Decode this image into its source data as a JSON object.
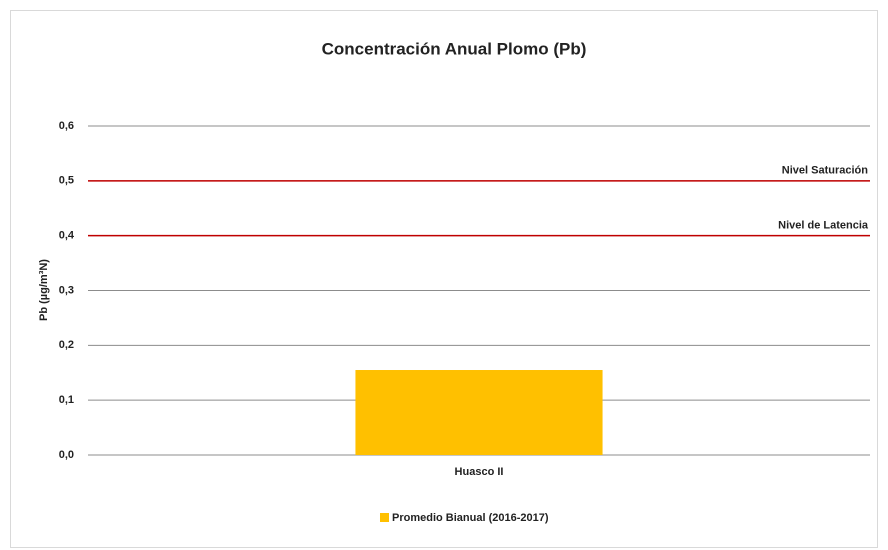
{
  "chart_data": {
    "type": "bar",
    "title": "Concentración Anual Plomo (Pb)",
    "y_label": "Pb (µg/m³N)",
    "categories": [
      "Huasco II"
    ],
    "series": [
      {
        "name": "Promedio Bianual (2016-2017)",
        "color": "#ffc000",
        "values": [
          0.155
        ]
      }
    ],
    "ylim": [
      0,
      0.6
    ],
    "yticks": [
      {
        "value": 0,
        "label": "0,0"
      },
      {
        "value": 0.1,
        "label": "0,1"
      },
      {
        "value": 0.2,
        "label": "0,2"
      },
      {
        "value": 0.3,
        "label": "0,3"
      },
      {
        "value": 0.4,
        "label": "0,4"
      },
      {
        "value": 0.5,
        "label": "0,5"
      },
      {
        "value": 0.6,
        "label": "0,6"
      }
    ],
    "grid": true,
    "reference_lines": [
      {
        "value": 0.5,
        "label": "Nivel Saturación",
        "color": "#c00000"
      },
      {
        "value": 0.4,
        "label": "Nivel de Latencia",
        "color": "#c00000"
      }
    ],
    "legend": "bottom"
  }
}
